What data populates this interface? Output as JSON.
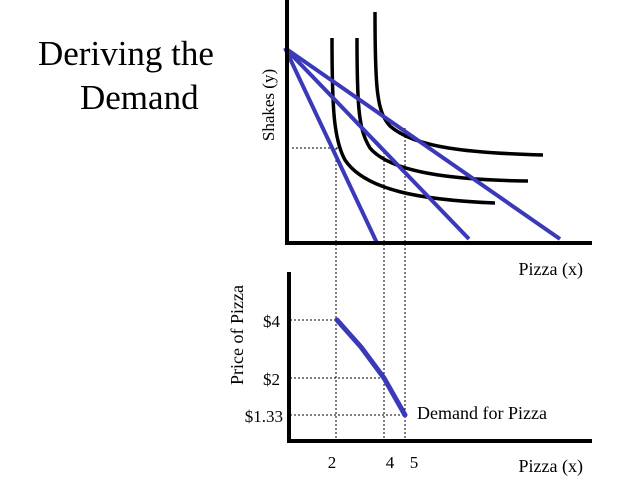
{
  "title": {
    "line1": "Deriving the",
    "line2": "Demand"
  },
  "top_graph": {
    "y_label": "Shakes (y)",
    "x_label": "Pizza (x)"
  },
  "bottom_graph": {
    "y_label": "Price of Pizza",
    "x_label": "Pizza (x)",
    "curve_label": "Demand for Pizza",
    "price_ticks": [
      "$4",
      "$2",
      "$1.33"
    ],
    "quantity_ticks": [
      "2",
      "4",
      "5"
    ]
  },
  "colors": {
    "budget_line": "#3a3ab8",
    "indifference_curve": "#000000",
    "axis": "#000000"
  }
}
